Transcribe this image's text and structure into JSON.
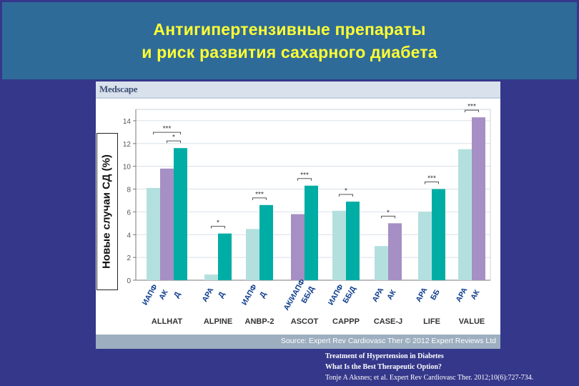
{
  "slide": {
    "title_line1": "Антигипертензивные препараты",
    "title_line2": "и риск развития сахарного диабета"
  },
  "figure": {
    "brand": "Medscape",
    "source": "Source: Expert Rev Cardiovasc Ther © 2012 Expert Reviews Ltd"
  },
  "citation": {
    "line1": "Treatment of Hypertension in Diabetes",
    "line2": "What Is the Best Therapeutic Option?",
    "line3": "Tonje A Aksnes; et al. Expert Rev Cardiovasc Ther. 2012;10(6):727-734."
  },
  "colors": {
    "light_teal": "#b3e0df",
    "purple": "#a58fc4",
    "teal": "#00ada5",
    "slide_bg": "#35378a",
    "banner": "#2f6b99",
    "title": "#ffff33"
  },
  "chart_data": {
    "type": "bar",
    "ylabel": "Новые случаи СД (%)",
    "ylim": [
      0,
      15
    ],
    "yticks": [
      0,
      2,
      4,
      6,
      8,
      10,
      12,
      14
    ],
    "grid": true,
    "groups": [
      {
        "name": "ALLHAT",
        "bars": [
          {
            "label": "ИАПФ",
            "value": 8.1,
            "color": "light"
          },
          {
            "label": "АК",
            "value": 9.8,
            "color": "purple"
          },
          {
            "label": "Д",
            "value": 11.6,
            "color": "teal"
          }
        ],
        "sig": [
          {
            "from": 0,
            "to": 2,
            "text": "***"
          },
          {
            "from": 1,
            "to": 2,
            "text": "*"
          }
        ]
      },
      {
        "name": "ALPINE",
        "bars": [
          {
            "label": "АРА",
            "value": 0.5,
            "color": "light"
          },
          {
            "label": "Д",
            "value": 4.1,
            "color": "teal"
          }
        ],
        "sig": [
          {
            "from": 0,
            "to": 1,
            "text": "*"
          }
        ]
      },
      {
        "name": "ANBP-2",
        "bars": [
          {
            "label": "ИАПФ",
            "value": 4.5,
            "color": "light"
          },
          {
            "label": "Д",
            "value": 6.6,
            "color": "teal"
          }
        ],
        "sig": [
          {
            "from": 0,
            "to": 1,
            "text": "***"
          }
        ]
      },
      {
        "name": "ASCOT",
        "bars": [
          {
            "label": "АК/ИАПФ",
            "value": 5.8,
            "color": "purple"
          },
          {
            "label": "ББ/Д",
            "value": 8.3,
            "color": "teal"
          }
        ],
        "sig": [
          {
            "from": 0,
            "to": 1,
            "text": "***"
          }
        ]
      },
      {
        "name": "CAPPP",
        "bars": [
          {
            "label": "ИАПФ",
            "value": 6.1,
            "color": "light"
          },
          {
            "label": "ББ/Д",
            "value": 6.9,
            "color": "teal"
          }
        ],
        "sig": [
          {
            "from": 0,
            "to": 1,
            "text": "*"
          }
        ]
      },
      {
        "name": "CASE-J",
        "bars": [
          {
            "label": "АРА",
            "value": 3.0,
            "color": "light"
          },
          {
            "label": "АК",
            "value": 5.0,
            "color": "purple"
          }
        ],
        "sig": [
          {
            "from": 0,
            "to": 1,
            "text": "*"
          }
        ]
      },
      {
        "name": "LIFE",
        "bars": [
          {
            "label": "АРА",
            "value": 6.0,
            "color": "light"
          },
          {
            "label": "ББ",
            "value": 8.0,
            "color": "teal"
          }
        ],
        "sig": [
          {
            "from": 0,
            "to": 1,
            "text": "***"
          }
        ]
      },
      {
        "name": "VALUE",
        "bars": [
          {
            "label": "АРА",
            "value": 11.5,
            "color": "light"
          },
          {
            "label": "АК",
            "value": 14.3,
            "color": "purple"
          }
        ],
        "sig": [
          {
            "from": 0,
            "to": 1,
            "text": "***"
          }
        ]
      }
    ]
  }
}
